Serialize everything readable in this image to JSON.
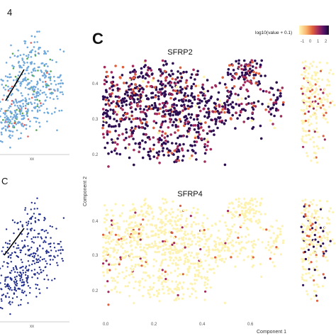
{
  "panel_labels": {
    "top_left": "4",
    "bottom_left": "C",
    "main": "C"
  },
  "left_axis_label": "xx",
  "legend": {
    "label": "log10(value + 0.1)",
    "ticks": [
      "-1",
      "0",
      "1",
      "2"
    ],
    "colors": [
      "#fff7b8",
      "#f8b36a",
      "#e0603d",
      "#a02a5c",
      "#4a1166",
      "#1a0a2e"
    ]
  },
  "colors": {
    "high": "#2c0d52",
    "mid": "#a02a5c",
    "warm": "#e0603d",
    "low": "#fdf2b0",
    "left_top_main": "#6fa8dc",
    "left_top_red": "#e06060",
    "left_top_green": "#55aa55",
    "left_bottom_main": "#1f2c8c"
  },
  "chart_data": [
    {
      "type": "scatter",
      "title": "SFRP2",
      "xlabel": "",
      "ylabel": "Component 2",
      "yticks": [
        "0.2",
        "0.3",
        "0.4"
      ],
      "ylim": [
        0.17,
        0.45
      ],
      "xlim": [
        -0.02,
        0.8
      ],
      "expression": "high"
    },
    {
      "type": "scatter",
      "title": "SFRP4",
      "xlabel": "Component 1",
      "ylabel": "Component 2",
      "yticks": [
        "0.2",
        "0.3",
        "0.4"
      ],
      "xticks": [
        "0.0",
        "0.2",
        "0.4",
        "0.6"
      ],
      "ylim": [
        0.17,
        0.45
      ],
      "xlim": [
        -0.02,
        0.8
      ],
      "expression": "low"
    }
  ]
}
